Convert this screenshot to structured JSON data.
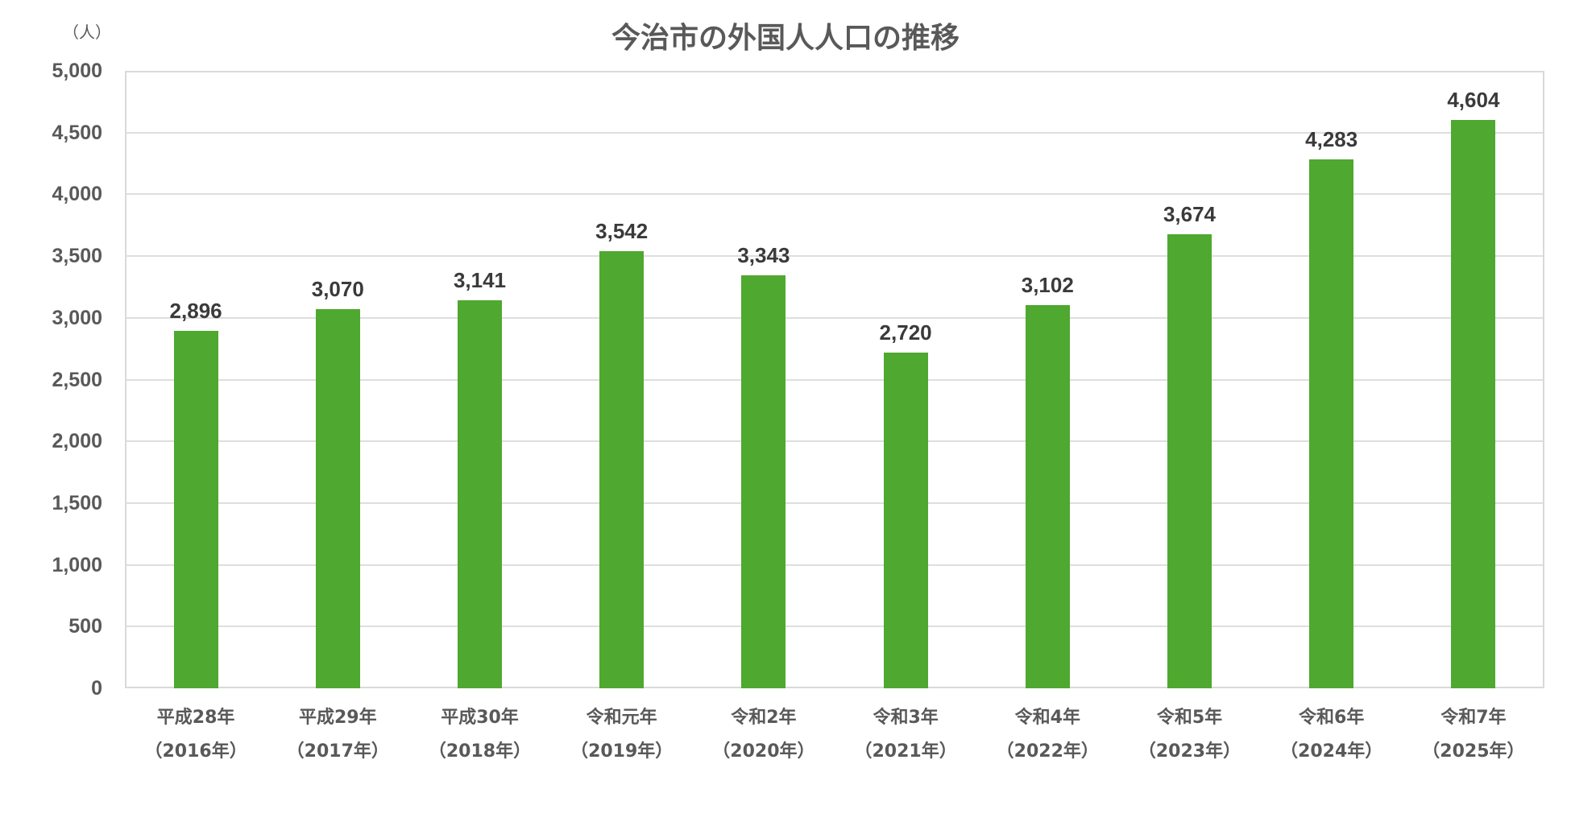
{
  "chart_data": {
    "type": "bar",
    "title": "今治市の外国人人口の推移",
    "xlabel": "",
    "ylabel": "（人）",
    "ylim": [
      0,
      5000
    ],
    "yticks": [
      "0",
      "500",
      "1,000",
      "1,500",
      "2,000",
      "2,500",
      "3,000",
      "3,500",
      "4,000",
      "4,500",
      "5,000"
    ],
    "grid": true,
    "legend": null,
    "bar_color": "#4fa82f",
    "categories": [
      {
        "era": "平成28年",
        "year": "（2016年）"
      },
      {
        "era": "平成29年",
        "year": "（2017年）"
      },
      {
        "era": "平成30年",
        "year": "（2018年）"
      },
      {
        "era": "令和元年",
        "year": "（2019年）"
      },
      {
        "era": "令和2年",
        "year": "（2020年）"
      },
      {
        "era": "令和3年",
        "year": "（2021年）"
      },
      {
        "era": "令和4年",
        "year": "（2022年）"
      },
      {
        "era": "令和5年",
        "year": "（2023年）"
      },
      {
        "era": "令和6年",
        "year": "（2024年）"
      },
      {
        "era": "令和7年",
        "year": "（2025年）"
      }
    ],
    "values": [
      2896,
      3070,
      3141,
      3542,
      3343,
      2720,
      3102,
      3674,
      4283,
      4604
    ],
    "data_labels": [
      "2,896",
      "3,070",
      "3,141",
      "3,542",
      "3,343",
      "2,720",
      "3,102",
      "3,674",
      "4,283",
      "4,604"
    ]
  }
}
